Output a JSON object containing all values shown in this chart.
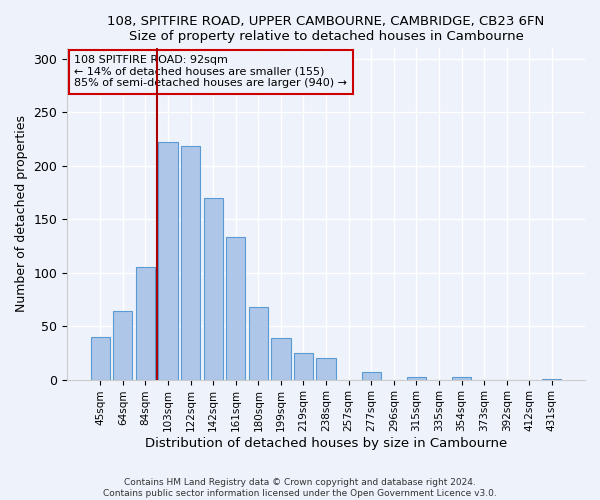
{
  "title": "108, SPITFIRE ROAD, UPPER CAMBOURNE, CAMBRIDGE, CB23 6FN",
  "subtitle": "Size of property relative to detached houses in Cambourne",
  "xlabel": "Distribution of detached houses by size in Cambourne",
  "ylabel": "Number of detached properties",
  "bar_labels": [
    "45sqm",
    "64sqm",
    "84sqm",
    "103sqm",
    "122sqm",
    "142sqm",
    "161sqm",
    "180sqm",
    "199sqm",
    "219sqm",
    "238sqm",
    "257sqm",
    "277sqm",
    "296sqm",
    "315sqm",
    "335sqm",
    "354sqm",
    "373sqm",
    "392sqm",
    "412sqm",
    "431sqm"
  ],
  "bar_values": [
    40,
    64,
    105,
    222,
    219,
    170,
    133,
    68,
    39,
    25,
    20,
    0,
    7,
    0,
    2,
    0,
    2,
    0,
    0,
    0,
    1
  ],
  "bar_color": "#aec6e8",
  "bar_edgecolor": "#5b9bd5",
  "vline_color": "#aa0000",
  "annotation_title": "108 SPITFIRE ROAD: 92sqm",
  "annotation_line1": "← 14% of detached houses are smaller (155)",
  "annotation_line2": "85% of semi-detached houses are larger (940) →",
  "annotation_box_edgecolor": "#cc0000",
  "ylim": [
    0,
    310
  ],
  "yticks": [
    0,
    50,
    100,
    150,
    200,
    250,
    300
  ],
  "footer1": "Contains HM Land Registry data © Crown copyright and database right 2024.",
  "footer2": "Contains public sector information licensed under the Open Government Licence v3.0.",
  "bg_color": "#eef2fb",
  "plot_bg_color": "#eef2fb"
}
